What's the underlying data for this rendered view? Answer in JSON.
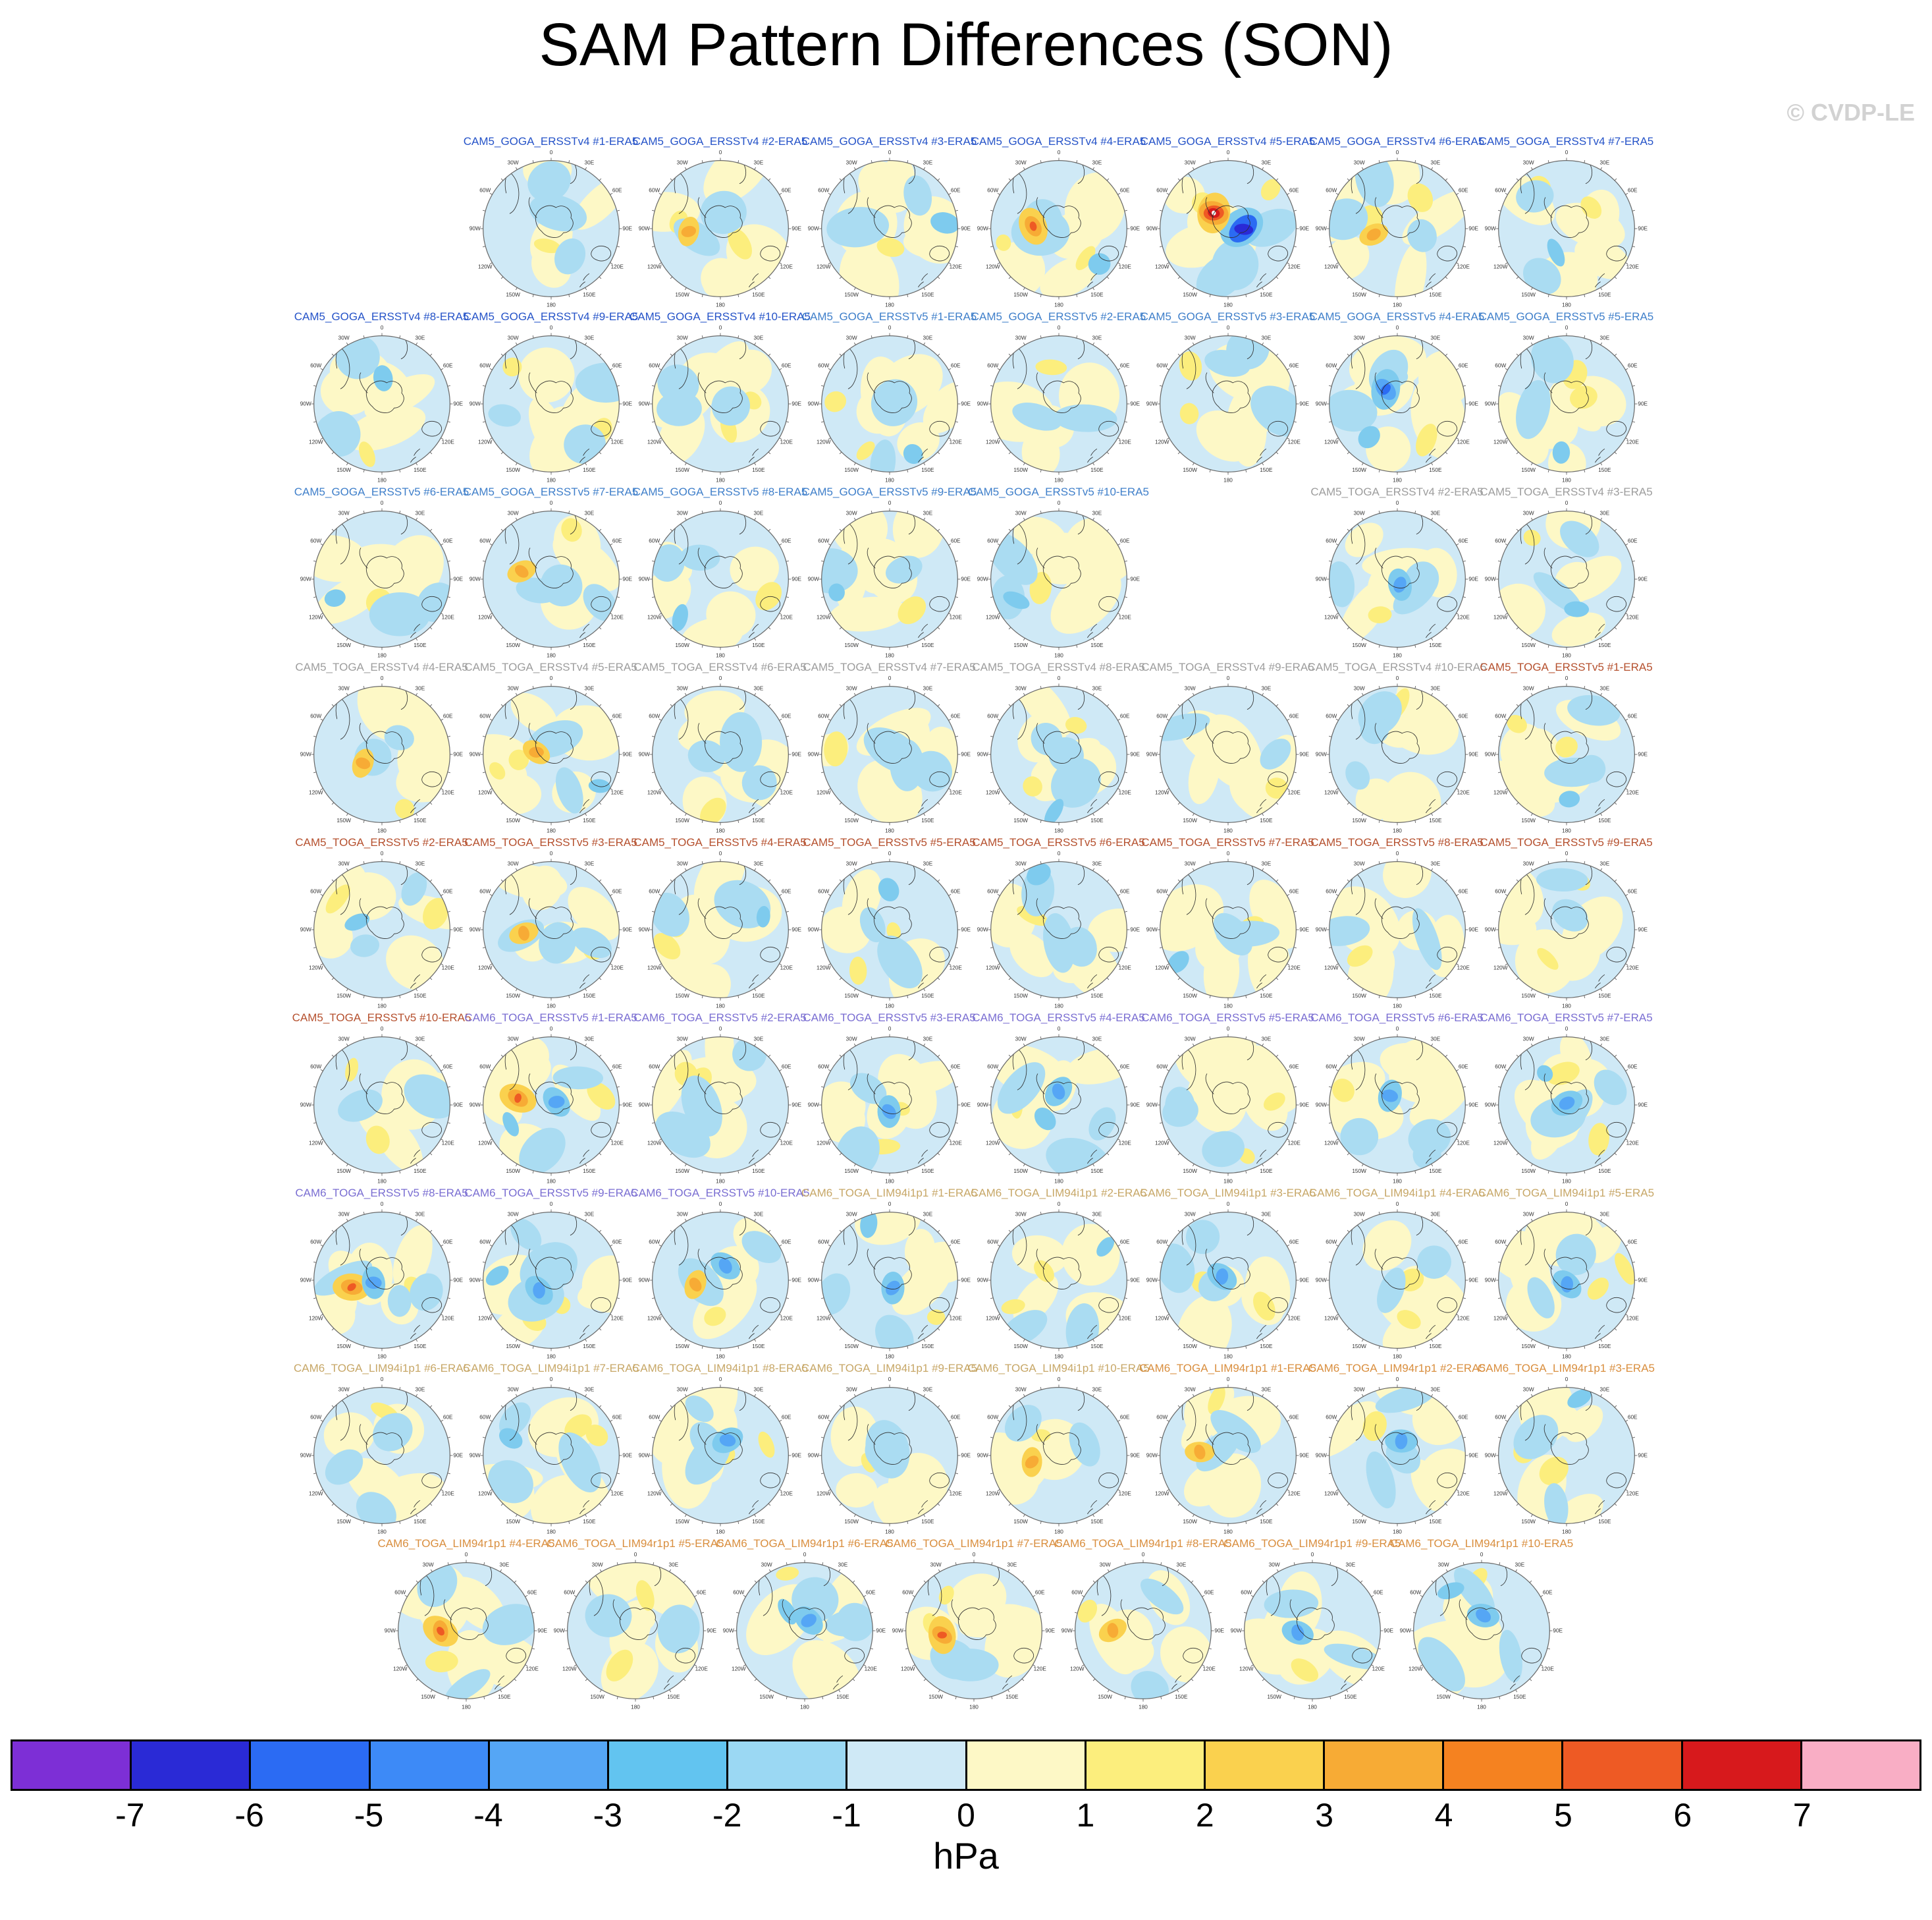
{
  "title": "SAM Pattern Differences (SON)",
  "watermark": "© CVDP-LE",
  "chart_data": {
    "type": "heatmap",
    "title": "SAM Pattern Differences (SON)",
    "unit": "hPa",
    "colorbar": {
      "tick_labels": [
        "-7",
        "-6",
        "-5",
        "-4",
        "-3",
        "-2",
        "-1",
        "0",
        "1",
        "2",
        "3",
        "4",
        "5",
        "6",
        "7"
      ],
      "colors": [
        "#7d2fd6",
        "#2a2ad6",
        "#2b6bf3",
        "#3d8af7",
        "#55a6f5",
        "#62c4f0",
        "#9bd8f3",
        "#cfe9f6",
        "#fdf8c6",
        "#fcee7d",
        "#fad14e",
        "#f7ab35",
        "#f58220",
        "#ee5a24",
        "#d7191c",
        "#f9aec5"
      ]
    },
    "map_tick_labels": [
      "0",
      "30E",
      "60E",
      "90E",
      "120E",
      "150E",
      "180",
      "150W",
      "120W",
      "90W",
      "60W",
      "30W"
    ],
    "map_palette": {
      "base": "#cfe9f6",
      "pale_yellow": "#fdf8c6",
      "yellow": "#fcee7d",
      "gold": "#fad14e",
      "orange": "#f7ab35",
      "deep_orange": "#ee5a24",
      "red": "#d7191c",
      "white": "#ffffff",
      "blue_light": "#aadcf2",
      "blue_med": "#7ecbee",
      "blue_deep": "#55a6f5",
      "blue_strong": "#2b6bf3",
      "blue_dark": "#2a2ad6",
      "coast": "#2f2f2f"
    },
    "groups": {
      "A": {
        "name": "CAM5_GOGA_ERSSTv4",
        "label_color": "#2553c8"
      },
      "B": {
        "name": "CAM5_GOGA_ERSSTv5",
        "label_color": "#3f7fca"
      },
      "C": {
        "name": "CAM5_TOGA_ERSSTv4",
        "label_color": "#9d9d9d"
      },
      "D": {
        "name": "CAM5_TOGA_ERSSTv5",
        "label_color": "#b5502e"
      },
      "E": {
        "name": "CAM6_TOGA_ERSSTv5",
        "label_color": "#7a6ed2"
      },
      "F": {
        "name": "CAM6_TOGA_LIM94i1p1",
        "label_color": "#c7a767"
      },
      "G": {
        "name": "CAM6_TOGA_LIM94r1p1",
        "label_color": "#d98e3e"
      }
    },
    "rows": [
      {
        "offset": 1,
        "panels": [
          {
            "label": "CAM5_GOGA_ERSSTv4 #1-ERA5",
            "g": "A",
            "a": []
          },
          {
            "label": "CAM5_GOGA_ERSSTv4 #2-ERA5",
            "g": "A",
            "a": [
              "orange"
            ]
          },
          {
            "label": "CAM5_GOGA_ERSSTv4 #3-ERA5",
            "g": "A",
            "a": []
          },
          {
            "label": "CAM5_GOGA_ERSSTv4 #4-ERA5",
            "g": "A",
            "a": [
              "orange-strong"
            ]
          },
          {
            "label": "CAM5_GOGA_ERSSTv4 #5-ERA5",
            "g": "A",
            "a": [
              "extreme"
            ]
          },
          {
            "label": "CAM5_GOGA_ERSSTv4 #6-ERA5",
            "g": "A",
            "a": [
              "orange"
            ]
          },
          {
            "label": "CAM5_GOGA_ERSSTv4 #7-ERA5",
            "g": "A",
            "a": []
          }
        ]
      },
      {
        "offset": 0,
        "panels": [
          {
            "label": "CAM5_GOGA_ERSSTv4 #8-ERA5",
            "g": "A",
            "a": []
          },
          {
            "label": "CAM5_GOGA_ERSSTv4 #9-ERA5",
            "g": "A",
            "a": []
          },
          {
            "label": "CAM5_GOGA_ERSSTv4 #10-ERA5",
            "g": "A",
            "a": []
          },
          {
            "label": "CAM5_GOGA_ERSSTv5 #1-ERA5",
            "g": "B",
            "a": []
          },
          {
            "label": "CAM5_GOGA_ERSSTv5 #2-ERA5",
            "g": "B",
            "a": []
          },
          {
            "label": "CAM5_GOGA_ERSSTv5 #3-ERA5",
            "g": "B",
            "a": []
          },
          {
            "label": "CAM5_GOGA_ERSSTv5 #4-ERA5",
            "g": "B",
            "a": [
              "blue-strong"
            ]
          },
          {
            "label": "CAM5_GOGA_ERSSTv5 #5-ERA5",
            "g": "B",
            "a": []
          }
        ]
      },
      {
        "offset": 0,
        "panels": [
          {
            "label": "CAM5_GOGA_ERSSTv5 #6-ERA5",
            "g": "B",
            "a": []
          },
          {
            "label": "CAM5_GOGA_ERSSTv5 #7-ERA5",
            "g": "B",
            "a": [
              "orange"
            ]
          },
          {
            "label": "CAM5_GOGA_ERSSTv5 #8-ERA5",
            "g": "B",
            "a": []
          },
          {
            "label": "CAM5_GOGA_ERSSTv5 #9-ERA5",
            "g": "B",
            "a": []
          },
          {
            "label": "CAM5_GOGA_ERSSTv5 #10-ERA5",
            "g": "B",
            "a": []
          },
          null,
          {
            "label": "CAM5_TOGA_ERSSTv4 #2-ERA5",
            "g": "C",
            "a": [
              "blue"
            ]
          },
          {
            "label": "CAM5_TOGA_ERSSTv4 #3-ERA5",
            "g": "C",
            "a": []
          }
        ]
      },
      {
        "offset": 0,
        "panels": [
          {
            "label": "CAM5_TOGA_ERSSTv4 #4-ERA5",
            "g": "C",
            "a": [
              "orange"
            ]
          },
          {
            "label": "CAM5_TOGA_ERSSTv4 #5-ERA5",
            "g": "C",
            "a": [
              "orange"
            ]
          },
          {
            "label": "CAM5_TOGA_ERSSTv4 #6-ERA5",
            "g": "C",
            "a": []
          },
          {
            "label": "CAM5_TOGA_ERSSTv4 #7-ERA5",
            "g": "C",
            "a": []
          },
          {
            "label": "CAM5_TOGA_ERSSTv4 #8-ERA5",
            "g": "C",
            "a": []
          },
          {
            "label": "CAM5_TOGA_ERSSTv4 #9-ERA5",
            "g": "C",
            "a": []
          },
          {
            "label": "CAM5_TOGA_ERSSTv4 #10-ERA5",
            "g": "C",
            "a": []
          },
          {
            "label": "CAM5_TOGA_ERSSTv5 #1-ERA5",
            "g": "D",
            "a": []
          }
        ]
      },
      {
        "offset": 0,
        "panels": [
          {
            "label": "CAM5_TOGA_ERSSTv5 #2-ERA5",
            "g": "D",
            "a": []
          },
          {
            "label": "CAM5_TOGA_ERSSTv5 #3-ERA5",
            "g": "D",
            "a": [
              "orange"
            ]
          },
          {
            "label": "CAM5_TOGA_ERSSTv5 #4-ERA5",
            "g": "D",
            "a": []
          },
          {
            "label": "CAM5_TOGA_ERSSTv5 #5-ERA5",
            "g": "D",
            "a": []
          },
          {
            "label": "CAM5_TOGA_ERSSTv5 #6-ERA5",
            "g": "D",
            "a": []
          },
          {
            "label": "CAM5_TOGA_ERSSTv5 #7-ERA5",
            "g": "D",
            "a": []
          },
          {
            "label": "CAM5_TOGA_ERSSTv5 #8-ERA5",
            "g": "D",
            "a": []
          },
          {
            "label": "CAM5_TOGA_ERSSTv5 #9-ERA5",
            "g": "D",
            "a": []
          }
        ]
      },
      {
        "offset": 0,
        "panels": [
          {
            "label": "CAM5_TOGA_ERSSTv5 #10-ERA5",
            "g": "D",
            "a": []
          },
          {
            "label": "CAM6_TOGA_ERSSTv5 #1-ERA5",
            "g": "E",
            "a": [
              "orange-strong",
              "blue"
            ]
          },
          {
            "label": "CAM6_TOGA_ERSSTv5 #2-ERA5",
            "g": "E",
            "a": []
          },
          {
            "label": "CAM6_TOGA_ERSSTv5 #3-ERA5",
            "g": "E",
            "a": [
              "blue"
            ]
          },
          {
            "label": "CAM6_TOGA_ERSSTv5 #4-ERA5",
            "g": "E",
            "a": [
              "blue"
            ]
          },
          {
            "label": "CAM6_TOGA_ERSSTv5 #5-ERA5",
            "g": "E",
            "a": []
          },
          {
            "label": "CAM6_TOGA_ERSSTv5 #6-ERA5",
            "g": "E",
            "a": [
              "blue"
            ]
          },
          {
            "label": "CAM6_TOGA_ERSSTv5 #7-ERA5",
            "g": "E",
            "a": [
              "blue"
            ]
          }
        ]
      },
      {
        "offset": 0,
        "panels": [
          {
            "label": "CAM6_TOGA_ERSSTv5 #8-ERA5",
            "g": "E",
            "a": [
              "orange-strong",
              "blue"
            ]
          },
          {
            "label": "CAM6_TOGA_ERSSTv5 #9-ERA5",
            "g": "E",
            "a": [
              "blue"
            ]
          },
          {
            "label": "CAM6_TOGA_ERSSTv5 #10-ERA5",
            "g": "E",
            "a": [
              "orange",
              "blue"
            ]
          },
          {
            "label": "CAM6_TOGA_LIM94i1p1 #1-ERA5",
            "g": "F",
            "a": [
              "blue"
            ]
          },
          {
            "label": "CAM6_TOGA_LIM94i1p1 #2-ERA5",
            "g": "F",
            "a": []
          },
          {
            "label": "CAM6_TOGA_LIM94i1p1 #3-ERA5",
            "g": "F",
            "a": [
              "blue"
            ]
          },
          {
            "label": "CAM6_TOGA_LIM94i1p1 #4-ERA5",
            "g": "F",
            "a": []
          },
          {
            "label": "CAM6_TOGA_LIM94i1p1 #5-ERA5",
            "g": "F",
            "a": [
              "blue"
            ]
          }
        ]
      },
      {
        "offset": 0,
        "panels": [
          {
            "label": "CAM6_TOGA_LIM94i1p1 #6-ERA5",
            "g": "F",
            "a": []
          },
          {
            "label": "CAM6_TOGA_LIM94i1p1 #7-ERA5",
            "g": "F",
            "a": []
          },
          {
            "label": "CAM6_TOGA_LIM94i1p1 #8-ERA5",
            "g": "F",
            "a": [
              "blue"
            ]
          },
          {
            "label": "CAM6_TOGA_LIM94i1p1 #9-ERA5",
            "g": "F",
            "a": []
          },
          {
            "label": "CAM6_TOGA_LIM94i1p1 #10-ERA5",
            "g": "F",
            "a": [
              "orange"
            ]
          },
          {
            "label": "CAM6_TOGA_LIM94r1p1 #1-ERA5",
            "g": "G",
            "a": [
              "orange"
            ]
          },
          {
            "label": "CAM6_TOGA_LIM94r1p1 #2-ERA5",
            "g": "G",
            "a": [
              "blue"
            ]
          },
          {
            "label": "CAM6_TOGA_LIM94r1p1 #3-ERA5",
            "g": "G",
            "a": []
          }
        ]
      },
      {
        "offset": 0.5,
        "panels": [
          {
            "label": "CAM6_TOGA_LIM94r1p1 #4-ERA5",
            "g": "G",
            "a": [
              "orange-strong"
            ]
          },
          {
            "label": "CAM6_TOGA_LIM94r1p1 #5-ERA5",
            "g": "G",
            "a": []
          },
          {
            "label": "CAM6_TOGA_LIM94r1p1 #6-ERA5",
            "g": "G",
            "a": [
              "blue"
            ]
          },
          {
            "label": "CAM6_TOGA_LIM94r1p1 #7-ERA5",
            "g": "G",
            "a": [
              "orange-strong"
            ]
          },
          {
            "label": "CAM6_TOGA_LIM94r1p1 #8-ERA5",
            "g": "G",
            "a": [
              "orange"
            ]
          },
          {
            "label": "CAM6_TOGA_LIM94r1p1 #9-ERA5",
            "g": "G",
            "a": [
              "blue"
            ]
          },
          {
            "label": "CAM6_TOGA_LIM94r1p1 #10-ERA5",
            "g": "G",
            "a": [
              "blue"
            ]
          }
        ]
      }
    ]
  }
}
